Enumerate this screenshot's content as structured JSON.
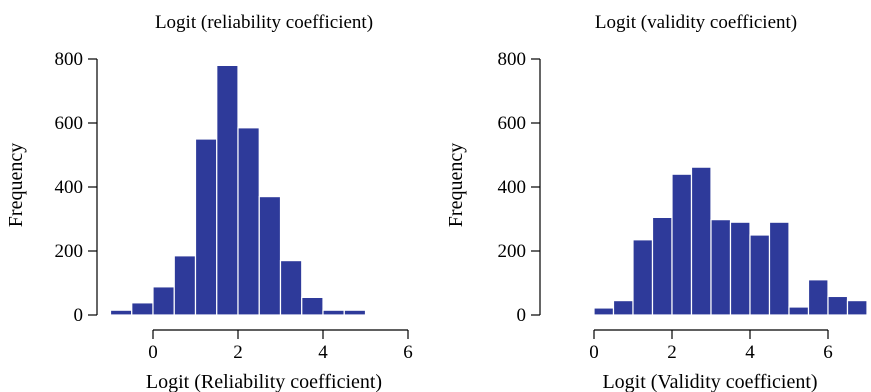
{
  "chart_data": [
    {
      "type": "bar",
      "title": "Logit (reliability coefficient)",
      "xlabel": "Logit (Reliability coefficient)",
      "ylabel": "Frequency",
      "xlim": [
        -1,
        6
      ],
      "ylim": [
        0,
        800
      ],
      "xticks": [
        "0",
        "2",
        "4",
        "6"
      ],
      "yticks": [
        "0",
        "200",
        "400",
        "600",
        "800"
      ],
      "bin_width": 0.5,
      "bins": [
        {
          "x0": -1.0,
          "value": 15
        },
        {
          "x0": -0.5,
          "value": 38
        },
        {
          "x0": 0.0,
          "value": 88
        },
        {
          "x0": 0.5,
          "value": 185
        },
        {
          "x0": 1.0,
          "value": 550
        },
        {
          "x0": 1.5,
          "value": 780
        },
        {
          "x0": 2.0,
          "value": 585
        },
        {
          "x0": 2.5,
          "value": 370
        },
        {
          "x0": 3.0,
          "value": 170
        },
        {
          "x0": 3.5,
          "value": 55
        },
        {
          "x0": 4.0,
          "value": 15
        },
        {
          "x0": 4.5,
          "value": 15
        },
        {
          "x0": 5.0,
          "value": 0
        },
        {
          "x0": 5.5,
          "value": 2
        }
      ],
      "grid": false,
      "color": "#2e3a9a"
    },
    {
      "type": "bar",
      "title": "Logit (validity coefficient)",
      "xlabel": "Logit (Validity coefficient)",
      "ylabel": "Frequency",
      "xlim": [
        0,
        7
      ],
      "ylim": [
        0,
        800
      ],
      "xticks": [
        "0",
        "2",
        "4",
        "6"
      ],
      "yticks": [
        "0",
        "200",
        "400",
        "600",
        "800"
      ],
      "bin_width": 0.5,
      "bins": [
        {
          "x0": -0.5,
          "value": 2
        },
        {
          "x0": 0.0,
          "value": 22
        },
        {
          "x0": 0.5,
          "value": 45
        },
        {
          "x0": 1.0,
          "value": 235
        },
        {
          "x0": 1.5,
          "value": 305
        },
        {
          "x0": 2.0,
          "value": 440
        },
        {
          "x0": 2.5,
          "value": 462
        },
        {
          "x0": 3.0,
          "value": 298
        },
        {
          "x0": 3.5,
          "value": 290
        },
        {
          "x0": 4.0,
          "value": 250
        },
        {
          "x0": 4.5,
          "value": 290
        },
        {
          "x0": 5.0,
          "value": 25
        },
        {
          "x0": 5.5,
          "value": 110
        },
        {
          "x0": 6.0,
          "value": 58
        },
        {
          "x0": 6.5,
          "value": 45
        }
      ],
      "grid": false,
      "color": "#2e3a9a"
    }
  ]
}
